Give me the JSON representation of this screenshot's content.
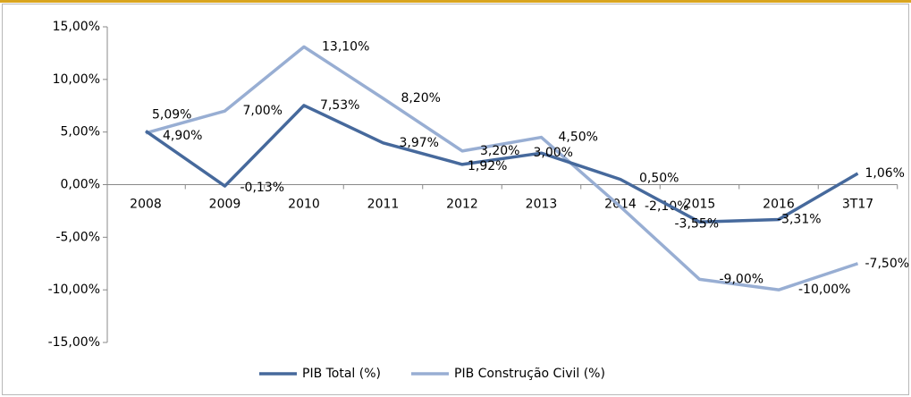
{
  "chart_data": {
    "type": "line",
    "categories": [
      "2008",
      "2009",
      "2010",
      "2011",
      "2012",
      "2013",
      "2014",
      "2015",
      "2016",
      "3T17"
    ],
    "series": [
      {
        "name": "PIB Total (%)",
        "color": "#46699c",
        "values": [
          5.09,
          -0.13,
          7.53,
          3.97,
          1.92,
          3.0,
          0.5,
          -3.55,
          -3.31,
          1.06
        ],
        "value_labels": [
          "5,09%",
          "-0,13%",
          "7,53%",
          "3,97%",
          "1,92%",
          "3,00%",
          "0,50%",
          "-3,55%",
          "-3,31%",
          "1,06%"
        ]
      },
      {
        "name": "PIB Construção Civil (%)",
        "color": "#98aed3",
        "values": [
          4.9,
          7.0,
          13.1,
          8.2,
          3.2,
          4.5,
          -2.1,
          -9.0,
          -10.0,
          -7.5
        ],
        "value_labels": [
          "4,90%",
          "7,00%",
          "13,10%",
          "8,20%",
          "3,20%",
          "4,50%",
          "-2,10%",
          "-9,00%",
          "-10,00%",
          "-7,50%"
        ]
      }
    ],
    "ylim": [
      -15,
      15
    ],
    "yticks": [
      {
        "value": -15,
        "label": "-15,00%"
      },
      {
        "value": -10,
        "label": "-10,00%"
      },
      {
        "value": -5,
        "label": "-5,00%"
      },
      {
        "value": 0,
        "label": "0,00%"
      },
      {
        "value": 5,
        "label": "5,00%"
      },
      {
        "value": 10,
        "label": "10,00%"
      },
      {
        "value": 15,
        "label": "15,00%"
      }
    ],
    "grid": false,
    "legend": "bottom"
  }
}
